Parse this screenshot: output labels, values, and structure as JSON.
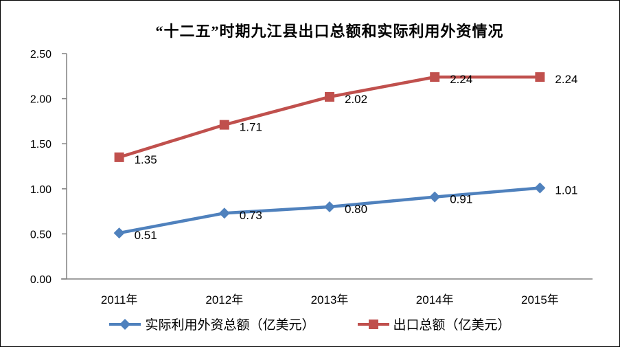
{
  "chart_data": {
    "type": "line",
    "title": "“十二五”时期九江县出口总额和实际利用外资情况",
    "categories": [
      "2011年",
      "2012年",
      "2013年",
      "2014年",
      "2015年"
    ],
    "series": [
      {
        "name": "实际利用外资总额（亿美元）",
        "values": [
          0.51,
          0.73,
          0.8,
          0.91,
          1.01
        ],
        "labels": [
          "0.51",
          "0.73",
          "0.80",
          "0.91",
          "1.01"
        ],
        "color": "#4F81BD",
        "marker": "diamond"
      },
      {
        "name": "出口总额（亿美元）",
        "values": [
          1.35,
          1.71,
          2.02,
          2.24,
          2.24
        ],
        "labels": [
          "1.35",
          "1.71",
          "2.02",
          "2.24",
          "2.24"
        ],
        "color": "#C0504D",
        "marker": "square"
      }
    ],
    "ylim": [
      0,
      2.5
    ],
    "ytick_interval": 0.5,
    "yticks": [
      "0.00",
      "0.50",
      "1.00",
      "1.50",
      "2.00",
      "2.50"
    ],
    "grid": false,
    "legend_position": "bottom",
    "axis_color": "#808080",
    "label_color": "#000000"
  }
}
